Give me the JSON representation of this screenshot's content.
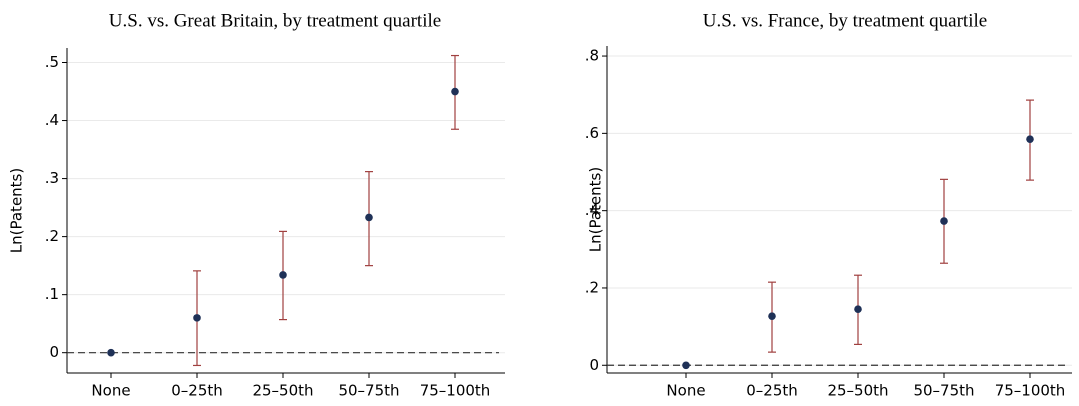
{
  "chart_data": [
    {
      "type": "errorbar",
      "title": "U.S. vs. Great Britain, by treatment quartile",
      "y_label": "Ln(Patents)",
      "categories": [
        "None",
        "0–25th",
        "25–50th",
        "50–75th",
        "75–100th"
      ],
      "values": [
        0,
        0.06,
        0.134,
        0.233,
        0.45
      ],
      "ci_low": [
        null,
        -0.022,
        0.057,
        0.15,
        0.385
      ],
      "ci_high": [
        null,
        0.141,
        0.209,
        0.312,
        0.512
      ],
      "point_color": "#1f3157",
      "bar_color": "#a0403f",
      "ylim": [
        -0.035,
        0.525
      ],
      "yticks": [
        0,
        {
          "value": 0.1,
          "label": ".1"
        },
        {
          "value": 0.2,
          "label": ".2"
        },
        {
          "value": 0.3,
          "label": ".3"
        },
        {
          "value": 0.4,
          "label": ".4"
        },
        {
          "value": 0.5,
          "label": ".5"
        }
      ],
      "reference_line": 0,
      "grid": true
    },
    {
      "type": "errorbar",
      "title": "U.S. vs. France, by treatment quartile",
      "y_label": "Ln(Patents)",
      "categories": [
        "None",
        "0–25th",
        "25–50th",
        "50–75th",
        "75–100th"
      ],
      "values": [
        0,
        0.127,
        0.145,
        0.373,
        0.585
      ],
      "ci_low": [
        null,
        0.034,
        0.054,
        0.264,
        0.479
      ],
      "ci_high": [
        null,
        0.215,
        0.233,
        0.481,
        0.686
      ],
      "point_color": "#1f3157",
      "bar_color": "#a0403f",
      "ylim": [
        -0.02,
        0.826
      ],
      "yticks": [
        0,
        {
          "value": 0.2,
          "label": ".2"
        },
        {
          "value": 0.4,
          "label": ".4"
        },
        {
          "value": 0.6,
          "label": ".6"
        },
        {
          "value": 0.8,
          "label": ".8"
        }
      ],
      "reference_line": 0,
      "grid": true
    }
  ]
}
